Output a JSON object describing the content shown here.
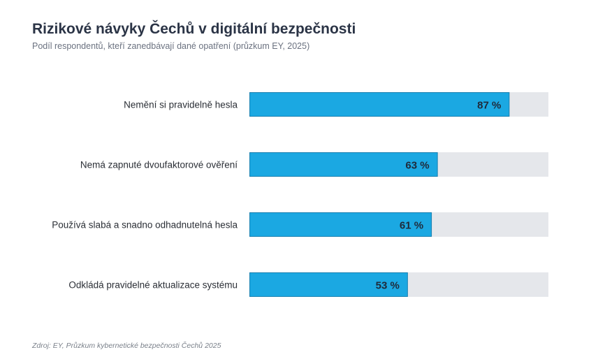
{
  "chart_data": {
    "type": "bar",
    "orientation": "horizontal",
    "title": "Rizikové návyky Čechů v digitální bezpečnosti",
    "subtitle": "Podíl respondentů, kteří zanedbávají dané opatření (průzkum EY, 2025)",
    "categories": [
      "Nemění si pravidelně hesla",
      "Nemá zapnuté dvoufaktorové ověření",
      "Používá slabá a snadno odhadnutelná hesla",
      "Odkládá pravidelné aktualizace systému"
    ],
    "values": [
      87,
      63,
      61,
      53
    ],
    "value_labels": [
      "87 %",
      "63 %",
      "61 %",
      "53 %"
    ],
    "unit": "%",
    "xlim": [
      0,
      100
    ],
    "grid": false,
    "legend": "none",
    "source": "Zdroj: EY, Průzkum kybernetické bezpečnosti Čechů 2025",
    "colors": {
      "bar": "#1ba8e2",
      "bar_border": "#167fb0",
      "track": "#e5e7eb",
      "title": "#2b3446",
      "text": "#2b2f36"
    }
  }
}
